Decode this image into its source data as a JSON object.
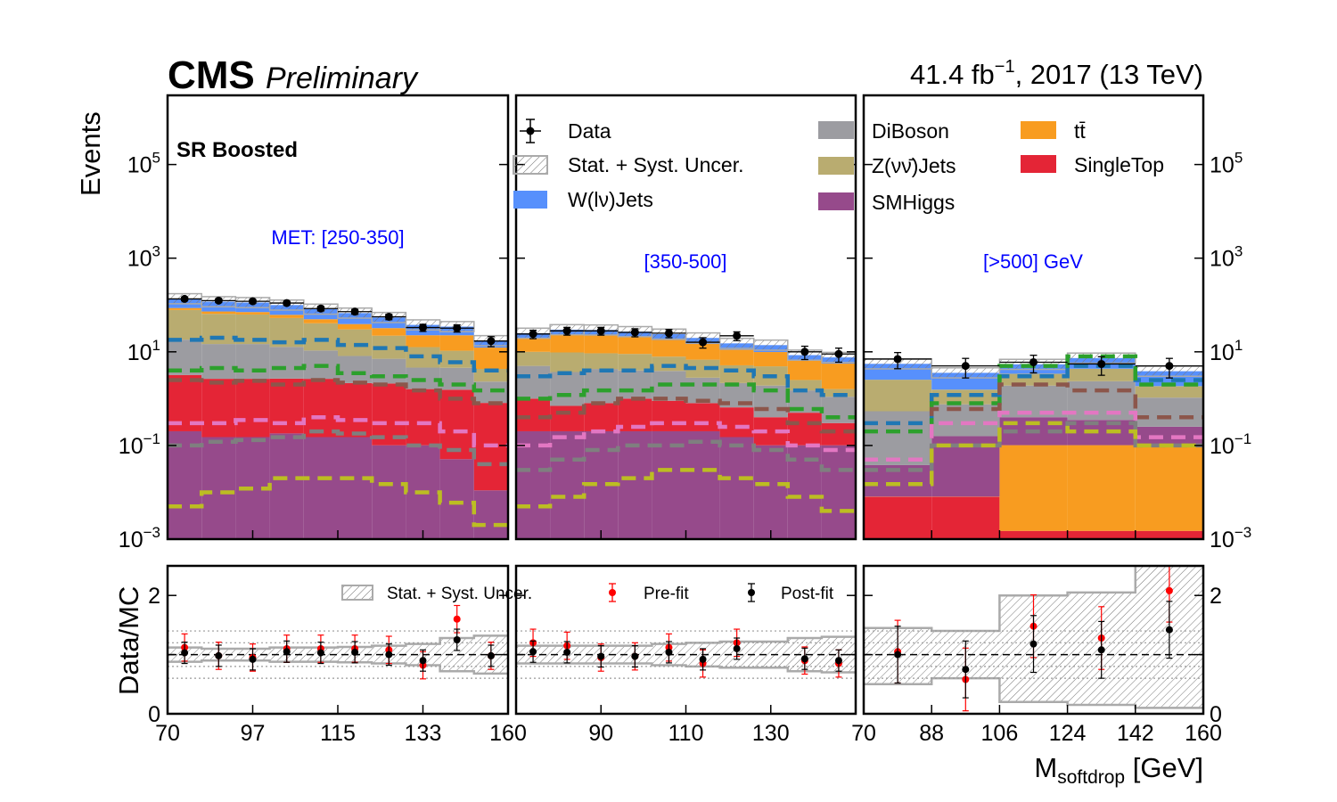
{
  "header": {
    "experiment": "CMS",
    "status": "Preliminary",
    "lumi_value": "41.4 fb",
    "lumi_exponent": "−1",
    "lumi_tail": ", 2017 (13 TeV)"
  },
  "region_label": "SR Boosted",
  "bin_labels": [
    "MET: [250-350]",
    "[350-500]",
    "[>500] GeV"
  ],
  "legend": {
    "data": "Data",
    "unc": "Stat. + Syst. Uncer.",
    "wjets": "W(lν)Jets",
    "diboson": "DiBoson",
    "zjets": "Z(νν̄)Jets",
    "smhiggs": "SMHiggs",
    "ttbar": "tt̄",
    "singletop": "SingleTop"
  },
  "ratio_legend": {
    "unc": "Stat. + Syst. Uncer.",
    "prefit": "Pre-fit",
    "postfit": "Post-fit"
  },
  "axes": {
    "ylabel_top": "Events",
    "ylabel_bottom": "Data/MC",
    "xlabel_main": "M",
    "xlabel_sub": "softdrop",
    "xlabel_unit": " [GeV]",
    "y_ticks_top": [
      {
        "base": "10",
        "exp": "−3",
        "value": -3
      },
      {
        "base": "10",
        "exp": "−1",
        "value": -1
      },
      {
        "base": "10",
        "exp": "1",
        "value": 1
      },
      {
        "base": "10",
        "exp": "3",
        "value": 3
      },
      {
        "base": "10",
        "exp": "5",
        "value": 5
      }
    ],
    "y_ticks_ratio": [
      "0",
      "2"
    ],
    "x_ticks": [
      [
        "70",
        "97",
        "115",
        "133",
        "160"
      ],
      [
        "",
        "90",
        "110",
        "130",
        ""
      ],
      [
        "70",
        "88",
        "106",
        "124",
        "142",
        "160"
      ]
    ]
  },
  "colors": {
    "wjets": "#5790fc",
    "diboson": "#9c9ca1",
    "zjets": "#b9ac70",
    "smhiggs": "#964a8b",
    "ttbar": "#f89c20",
    "singletop": "#e42536",
    "data": "#000000",
    "prefit": "#ff0000",
    "label_blue": "#0000ff"
  },
  "chart_data": {
    "type": "bar",
    "stacked": true,
    "log_y": true,
    "ylim": [
      0.001,
      3000000
    ],
    "ratio_ylim": [
      0,
      2.5
    ],
    "panels": [
      {
        "bin_label": "MET: [250-350]",
        "x_range": [
          70,
          160
        ],
        "edges": [
          70,
          79,
          88,
          97,
          106,
          115,
          124,
          133,
          142,
          151,
          160
        ],
        "stack_order": [
          "smhiggs",
          "singletop",
          "diboson",
          "zjets",
          "ttbar",
          "wjets"
        ],
        "stack": {
          "smhiggs": [
            0.2,
            0.15,
            0.15,
            0.18,
            0.15,
            0.15,
            0.1,
            0.1,
            0.05,
            0.01
          ],
          "singletop": [
            3,
            2.5,
            2.5,
            2.5,
            2.5,
            2,
            2,
            1.5,
            1.5,
            0.8
          ],
          "diboson": [
            15,
            12,
            12,
            10,
            8,
            6,
            5,
            3,
            3,
            1.5
          ],
          "zjets": [
            60,
            50,
            48,
            40,
            30,
            22,
            15,
            8,
            6,
            2
          ],
          "ttbar": [
            8,
            8,
            8,
            9,
            9,
            9,
            10,
            10,
            12,
            8
          ],
          "wjets": [
            50,
            45,
            42,
            38,
            32,
            28,
            22,
            15,
            12,
            5
          ]
        },
        "dashed_signals": {
          "steelblue": [
            18,
            20,
            18,
            16,
            18,
            14,
            12,
            8,
            6,
            4
          ],
          "green": [
            4,
            4.5,
            4,
            4.5,
            5,
            3.5,
            3,
            2.5,
            2,
            1.5
          ],
          "brown": [
            2.5,
            2.2,
            2.4,
            2,
            2.5,
            2.2,
            2,
            1.5,
            1,
            0.8
          ],
          "pink": [
            0.3,
            0.3,
            0.35,
            0.3,
            0.4,
            0.35,
            0.3,
            0.3,
            0.2,
            0.1
          ],
          "gray": [
            0.1,
            0.12,
            0.13,
            0.15,
            0.2,
            0.18,
            0.15,
            0.1,
            0.08,
            0.04
          ],
          "olive": [
            0.005,
            0.01,
            0.012,
            0.02,
            0.02,
            0.02,
            0.015,
            0.01,
            0.006,
            0.002
          ]
        },
        "data": {
          "x": [
            74.5,
            83.5,
            92.5,
            101.5,
            110.5,
            119.5,
            128.5,
            137.5,
            146.5,
            155.5
          ],
          "y": [
            135,
            124,
            120,
            110,
            84,
            72,
            56,
            33,
            32,
            17
          ],
          "xerr": 4.5
        },
        "ratio": {
          "postfit": [
            1.03,
            0.98,
            0.92,
            1.05,
            1.03,
            1.04,
            1.0,
            0.9,
            1.25,
            0.98
          ],
          "prefit": [
            1.12,
            0.98,
            0.95,
            1.1,
            1.1,
            1.1,
            1.08,
            0.82,
            1.6,
            0.98
          ],
          "unc_low": [
            0.88,
            0.9,
            0.9,
            0.88,
            0.88,
            0.87,
            0.85,
            0.82,
            0.72,
            0.68
          ],
          "unc_high": [
            1.12,
            1.1,
            1.1,
            1.12,
            1.12,
            1.13,
            1.15,
            1.18,
            1.28,
            1.32
          ]
        }
      },
      {
        "bin_label": "[350-500]",
        "x_range": [
          70,
          160
        ],
        "edges": [
          70,
          79,
          88,
          97,
          106,
          115,
          124,
          133,
          142,
          151,
          160
        ],
        "stack_order": [
          "smhiggs",
          "singletop",
          "diboson",
          "zjets",
          "ttbar",
          "wjets"
        ],
        "stack": {
          "singletop": [
            0.8,
            0.5,
            0.6,
            0.8,
            0.7,
            0.6,
            0.5,
            0.3,
            0.4,
            0.2
          ],
          "smhiggs": [
            0.2,
            0.2,
            0.2,
            0.2,
            0.2,
            0.2,
            0.15,
            0.1,
            0.1,
            0.1
          ],
          "diboson": [
            4,
            3,
            3.5,
            3,
            3,
            2,
            1.5,
            1.5,
            1,
            0.8
          ],
          "zjets": [
            5,
            6,
            5,
            5,
            4,
            4,
            3,
            3,
            1,
            0.5
          ],
          "ttbar": [
            10,
            14,
            14,
            12,
            10,
            8,
            6,
            5,
            4,
            4
          ],
          "wjets": [
            5,
            6,
            6,
            6,
            6,
            5,
            4,
            4,
            2,
            2
          ]
        },
        "dashed_signals": {
          "steelblue": [
            3,
            3.5,
            4,
            4,
            5,
            4.5,
            4,
            3,
            1.5,
            1.2
          ],
          "green": [
            1,
            1.2,
            1.5,
            1.5,
            2,
            2,
            2,
            1.5,
            0.6,
            0.4
          ],
          "brown": [
            0.4,
            0.5,
            0.8,
            1,
            1,
            0.9,
            0.8,
            0.6,
            0.3,
            0.2
          ],
          "pink": [
            0.1,
            0.15,
            0.2,
            0.25,
            0.3,
            0.3,
            0.25,
            0.2,
            0.1,
            0.08
          ],
          "gray": [
            0.03,
            0.05,
            0.08,
            0.1,
            0.1,
            0.12,
            0.1,
            0.08,
            0.05,
            0.03
          ],
          "olive": [
            0.005,
            0.008,
            0.015,
            0.02,
            0.03,
            0.03,
            0.02,
            0.015,
            0.008,
            0.004
          ]
        },
        "data": {
          "x": [
            74.5,
            83.5,
            92.5,
            101.5,
            110.5,
            119.5,
            128.5,
            137.5,
            146.5,
            155.5
          ],
          "y": [
            24,
            28,
            28,
            26,
            25,
            16,
            22,
            0,
            10,
            9
          ],
          "xerr": 4.5
        },
        "ratio": {
          "postfit": [
            1.05,
            1.04,
            0.97,
            0.97,
            1.04,
            0.92,
            1.1,
            0,
            0.93,
            0.9
          ],
          "prefit": [
            1.2,
            1.15,
            0.95,
            0.97,
            1.12,
            0.85,
            1.2,
            0,
            0.9,
            0.85
          ],
          "unc_low": [
            0.85,
            0.85,
            0.85,
            0.85,
            0.82,
            0.8,
            0.78,
            0.78,
            0.72,
            0.7
          ],
          "unc_high": [
            1.15,
            1.15,
            1.15,
            1.15,
            1.18,
            1.2,
            1.22,
            1.22,
            1.28,
            1.3
          ]
        }
      },
      {
        "bin_label": "[>500] GeV",
        "x_range": [
          70,
          160
        ],
        "edges": [
          70,
          88,
          106,
          124,
          142,
          160
        ],
        "stack_order": [
          "singletop",
          "ttbar",
          "smhiggs",
          "diboson",
          "zjets",
          "wjets"
        ],
        "stack": {
          "singletop": [
            0.007,
            0.007,
            0.0005,
            0.0005,
            0.0005
          ],
          "ttbar": [
            0.0001,
            0.0001,
            0.1,
            0.1,
            0.1
          ],
          "smhiggs": [
            0.03,
            0.15,
            0.3,
            0.25,
            0.15
          ],
          "diboson": [
            0.5,
            0.6,
            1.5,
            2,
            0.8
          ],
          "zjets": [
            2,
            0.8,
            1.5,
            2,
            0.8
          ],
          "wjets": [
            3,
            2,
            2,
            3,
            2
          ]
        },
        "dashed_signals": {
          "steelblue": [
            0.3,
            1.2,
            3,
            5,
            2.5
          ],
          "green": [
            0.2,
            0.8,
            5,
            8,
            2
          ],
          "brown": [
            0.05,
            0.6,
            2,
            1.5,
            0.4
          ],
          "pink": [
            0.05,
            0.3,
            0.5,
            0.5,
            0.15
          ],
          "gray": [
            0.03,
            0.1,
            0.2,
            0.3,
            0.1
          ],
          "olive": [
            0.015,
            0.1,
            0.3,
            0.2,
            0.1
          ]
        },
        "data": {
          "x": [
            79,
            97,
            115,
            133,
            151
          ],
          "y": [
            7,
            5,
            6,
            5.5,
            5
          ],
          "xerr": 9
        },
        "ratio": {
          "postfit": [
            1.0,
            0.75,
            1.18,
            1.08,
            1.42
          ],
          "prefit": [
            1.05,
            0.58,
            1.48,
            1.28,
            2.08
          ],
          "unc_low": [
            0.5,
            0.6,
            0.2,
            0.15,
            0.1
          ],
          "unc_high": [
            1.45,
            1.4,
            2.0,
            2.05,
            2.5
          ]
        }
      }
    ]
  }
}
